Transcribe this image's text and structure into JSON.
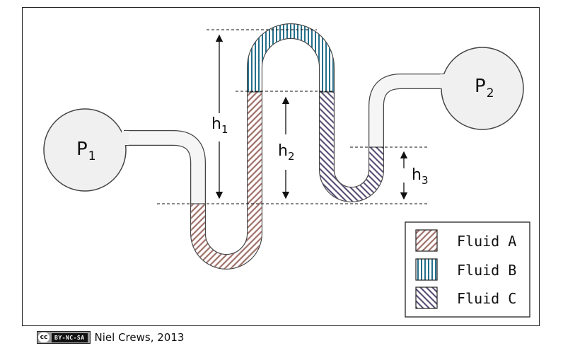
{
  "diagram": {
    "pressure_left": {
      "base": "P",
      "sub": "1"
    },
    "pressure_right": {
      "base": "P",
      "sub": "2"
    },
    "heights": [
      {
        "base": "h",
        "sub": "1"
      },
      {
        "base": "h",
        "sub": "2"
      },
      {
        "base": "h",
        "sub": "3"
      }
    ]
  },
  "legend": {
    "items": [
      {
        "label": "Fluid A",
        "color": "#b98f8a"
      },
      {
        "label": "Fluid B",
        "color": "#2a6f8a"
      },
      {
        "label": "Fluid C",
        "color": "#5b4e7a"
      }
    ]
  },
  "credit": {
    "license_symbol": "cc",
    "license": "BY-NC-SA",
    "author": "Niel Crews, 2013"
  }
}
